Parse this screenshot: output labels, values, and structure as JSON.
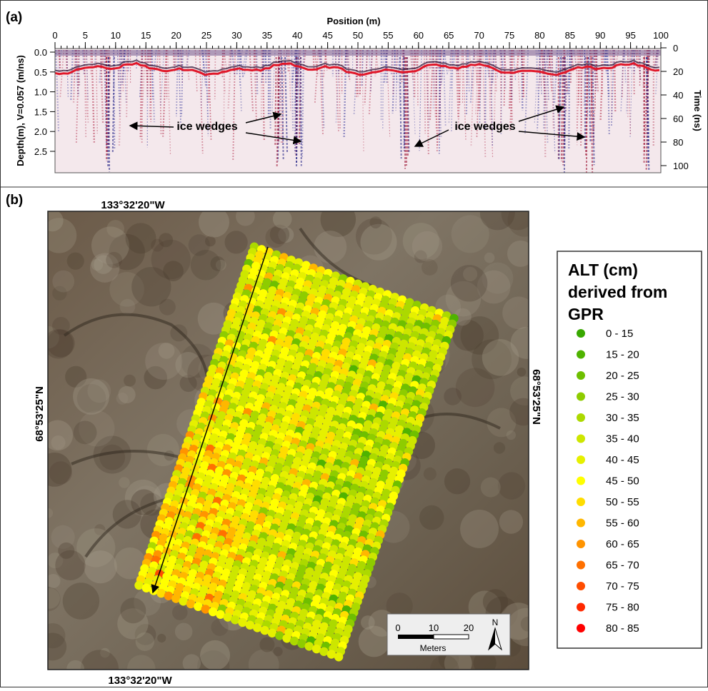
{
  "panel_a": {
    "label": "(a)",
    "x_axis_title": "Position (m)",
    "x_ticks": [
      "0",
      "5",
      "10",
      "15",
      "20",
      "25",
      "30",
      "35",
      "40",
      "45",
      "50",
      "55",
      "60",
      "65",
      "70",
      "75",
      "80",
      "85",
      "90",
      "95",
      "100"
    ],
    "depth_axis_title": "Depth(m), V=0.057 (m/ns)",
    "depth_ticks": [
      "0.0",
      "0.5",
      "1.0",
      "1.5",
      "2.0",
      "2.5"
    ],
    "time_axis_title": "Time (ns)",
    "time_ticks": [
      "0",
      "20",
      "40",
      "60",
      "80",
      "100"
    ],
    "annotations": [
      "ice wedges",
      "ice wedges"
    ]
  },
  "panel_b": {
    "label": "(b)",
    "longitude_top": "133°32'20\"W",
    "longitude_bottom": "133°32'20\"W",
    "latitude_left": "68°53'25\"N",
    "latitude_right": "68°53'25\"N",
    "legend": {
      "title_lines": [
        "ALT (cm)",
        "derived from",
        "GPR"
      ],
      "items": [
        {
          "label": "0 - 15",
          "color": "#38a800"
        },
        {
          "label": "15 - 20",
          "color": "#4fb300"
        },
        {
          "label": "20 - 25",
          "color": "#6ebf00"
        },
        {
          "label": "25 - 30",
          "color": "#8ecc00"
        },
        {
          "label": "30 - 35",
          "color": "#acd900"
        },
        {
          "label": "35 - 40",
          "color": "#cde600"
        },
        {
          "label": "40 - 45",
          "color": "#e6f000"
        },
        {
          "label": "45 - 50",
          "color": "#ffff00"
        },
        {
          "label": "50 - 55",
          "color": "#ffdd00"
        },
        {
          "label": "55 - 60",
          "color": "#ffb700"
        },
        {
          "label": "60 - 65",
          "color": "#ff9400"
        },
        {
          "label": "65 - 70",
          "color": "#ff7000"
        },
        {
          "label": "70 - 75",
          "color": "#ff4d00"
        },
        {
          "label": "75 - 80",
          "color": "#ff2800"
        },
        {
          "label": "80 - 85",
          "color": "#ff0000"
        }
      ]
    },
    "scale_bar": {
      "ticks": [
        "0",
        "10",
        "20"
      ],
      "unit": "Meters"
    },
    "north": "N"
  }
}
